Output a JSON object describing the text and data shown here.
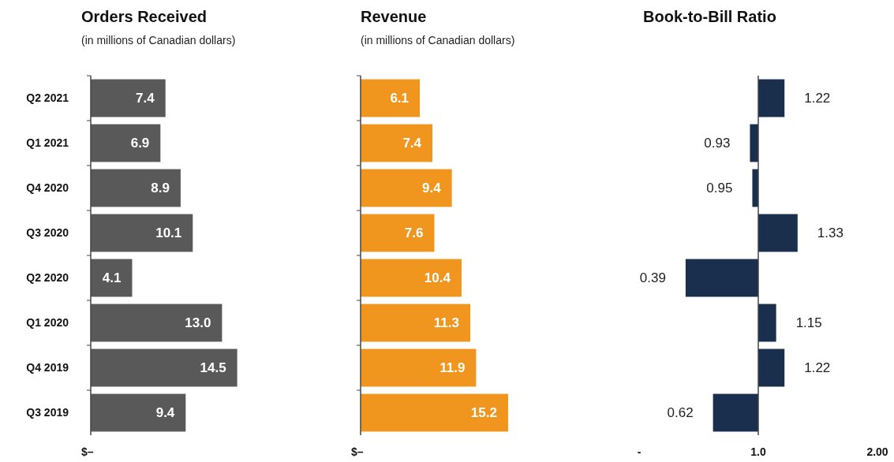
{
  "chart_data": [
    {
      "type": "bar",
      "orientation": "horizontal",
      "title": "Orders Received",
      "subtitle": "(in millions of Canadian dollars)",
      "categories": [
        "Q2 2021",
        "Q1 2021",
        "Q4 2020",
        "Q3 2020",
        "Q2 2020",
        "Q1 2020",
        "Q4 2019",
        "Q3 2019"
      ],
      "values": [
        7.4,
        6.9,
        8.9,
        10.1,
        4.1,
        13.0,
        14.5,
        9.4
      ],
      "value_labels": [
        "7.4",
        "6.9",
        "8.9",
        "10.1",
        "4.1",
        "13.0",
        "14.5",
        "9.4"
      ],
      "color": "#595959",
      "annotations": [
        "$–"
      ]
    },
    {
      "type": "bar",
      "orientation": "horizontal",
      "title": "Revenue",
      "subtitle": "(in millions of Canadian dollars)",
      "categories": [
        null,
        null,
        null,
        null,
        null,
        null,
        null,
        null
      ],
      "values": [
        6.1,
        7.4,
        9.4,
        7.6,
        10.4,
        11.3,
        11.9,
        15.2
      ],
      "value_labels": [
        "6.1",
        "7.4",
        "9.4",
        "7.6",
        "10.4",
        "11.3",
        "11.9",
        "15.2"
      ],
      "color": "#f0961e",
      "annotations": [
        "$–"
      ]
    },
    {
      "type": "bar",
      "orientation": "horizontal",
      "title": "Book-to-Bill Ratio",
      "categories": [
        null,
        null,
        null,
        null,
        null,
        null,
        null,
        null
      ],
      "base": [
        1,
        1,
        1,
        1,
        1,
        1,
        1,
        1
      ],
      "values": [
        0.22,
        -0.07,
        -0.05,
        0.33,
        -0.61,
        0.15,
        0.22,
        -0.38
      ],
      "value_labels": [
        "1.22",
        "0.93",
        "0.95",
        "1.33",
        "0.39",
        "1.15",
        "1.22",
        "0.62"
      ],
      "color": "#1a2f4e",
      "xlim": [
        0,
        2
      ],
      "xticks": [
        {
          "value": 0,
          "label": "-"
        },
        {
          "value": 1,
          "label": "1.0"
        },
        {
          "value": 2,
          "label": "2.00"
        }
      ],
      "tick_labels": "x"
    }
  ]
}
